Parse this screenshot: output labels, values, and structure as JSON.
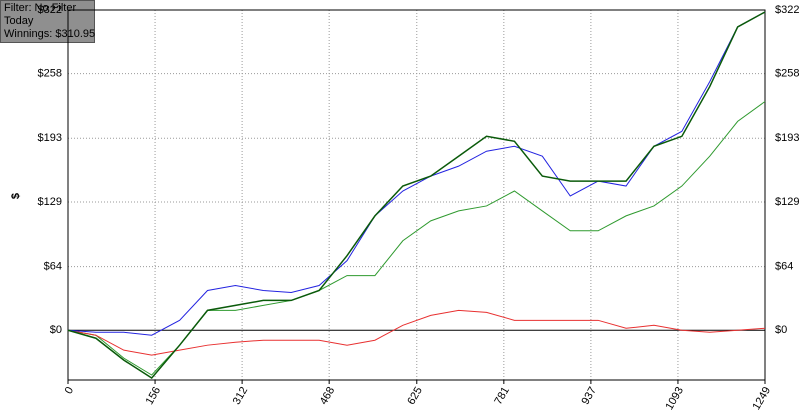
{
  "chart_data": {
    "type": "line",
    "annotations": [
      "Filter: No Filter",
      "Today",
      "Winnings: $310.95"
    ],
    "ylabel": "$",
    "x": [
      0,
      50,
      100,
      150,
      200,
      250,
      300,
      350,
      400,
      450,
      500,
      550,
      600,
      650,
      700,
      750,
      800,
      850,
      900,
      950,
      1000,
      1050,
      1100,
      1150,
      1200,
      1249
    ],
    "series": [
      {
        "color": "#2f9a2f",
        "values": [
          0,
          -5,
          -28,
          -45,
          -15,
          20,
          20,
          25,
          30,
          40,
          55,
          55,
          90,
          110,
          120,
          125,
          140,
          120,
          100,
          100,
          115,
          125,
          145,
          175,
          210,
          230
        ]
      },
      {
        "color": "#e83030",
        "values": [
          0,
          -5,
          -20,
          -25,
          -20,
          -15,
          -12,
          -10,
          -10,
          -10,
          -15,
          -10,
          5,
          15,
          20,
          18,
          10,
          10,
          10,
          10,
          2,
          5,
          0,
          -2,
          0,
          2
        ]
      },
      {
        "color": "#2323e0",
        "values": [
          0,
          -2,
          -2,
          -5,
          10,
          40,
          45,
          40,
          38,
          45,
          70,
          115,
          140,
          155,
          165,
          180,
          185,
          175,
          135,
          150,
          145,
          185,
          200,
          250,
          305,
          320
        ]
      },
      {
        "color": "#0a5a0a",
        "values": [
          0,
          -8,
          -30,
          -48,
          -15,
          20,
          25,
          30,
          30,
          40,
          75,
          115,
          145,
          155,
          175,
          195,
          190,
          155,
          150,
          150,
          150,
          185,
          195,
          245,
          305,
          320
        ]
      }
    ],
    "xlim": [
      0,
      1249
    ],
    "xticks": [
      0,
      156,
      312,
      468,
      625,
      781,
      937,
      1093,
      1249
    ],
    "ylim": [
      -50,
      322
    ],
    "yticks": [
      {
        "value": 0,
        "label": "$0"
      },
      {
        "value": 64,
        "label": "$64"
      },
      {
        "value": 129,
        "label": "$129"
      },
      {
        "value": 193,
        "label": "$193"
      },
      {
        "value": 258,
        "label": "$258"
      },
      {
        "value": 322,
        "label": "$322"
      }
    ],
    "grid": true
  }
}
